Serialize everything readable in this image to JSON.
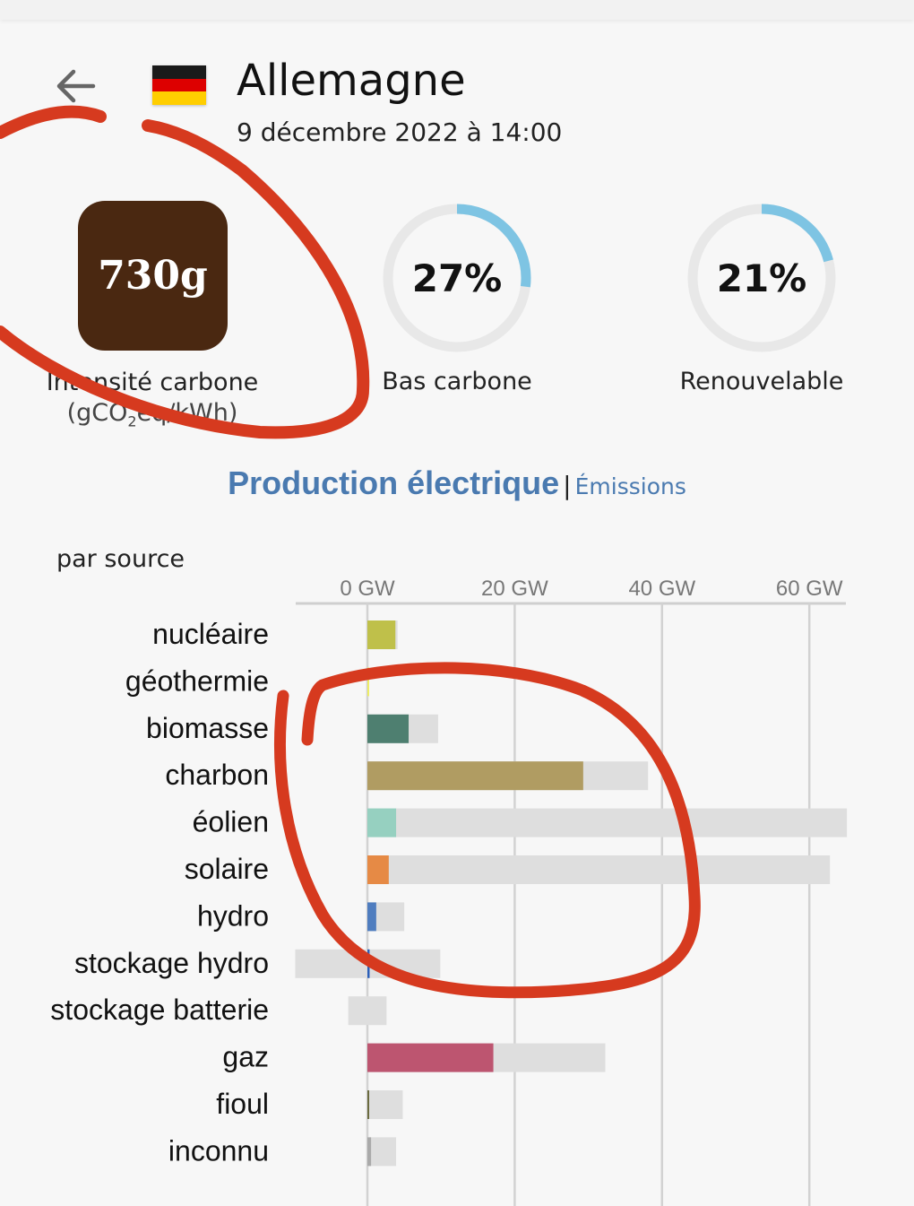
{
  "header": {
    "title": "Allemagne",
    "datetime": "9 décembre 2022 à 14:00",
    "flag_colors": [
      "#1a1a1a",
      "#dd0000",
      "#ffce00"
    ]
  },
  "summary": {
    "carbon_intensity": {
      "value": "730g",
      "label": "Intensité carbone",
      "color": "#4a2811"
    },
    "low_carbon": {
      "value": "27%",
      "percent": 27,
      "label": "Bas carbone"
    },
    "renewable": {
      "value": "21%",
      "percent": 21,
      "label": "Renouvelable"
    },
    "gauge_color": "#7ec4e3",
    "gauge_track_color": "#e8e8e8"
  },
  "section": {
    "title": "Production électrique",
    "separator": "|",
    "alt_tab": "Émissions"
  },
  "chart_label": "par source",
  "annotation_color": "#d63a1f",
  "chart_data": {
    "type": "bar",
    "unit": "GW",
    "xlim": [
      -10,
      65
    ],
    "ticks": [
      {
        "value": 0,
        "label": "0 GW"
      },
      {
        "value": 20,
        "label": "20 GW"
      },
      {
        "value": 40,
        "label": "40 GW"
      },
      {
        "value": 60,
        "label": "60 GW"
      }
    ],
    "grid": true,
    "categories": [
      "nucléaire",
      "géothermie",
      "biomasse",
      "charbon",
      "éolien",
      "solaire",
      "hydro",
      "stockage hydro",
      "stockage batterie",
      "gaz",
      "fioul",
      "inconnu"
    ],
    "series": [
      {
        "values": [
          3.8,
          0.1,
          5.6,
          29.3,
          3.9,
          2.9,
          1.2,
          0.3,
          0,
          17.1,
          0.1,
          0.5
        ],
        "colors": [
          "#bfc04a",
          "#eeee66",
          "#4e7f70",
          "#b09c62",
          "#96d0c0",
          "#e68a45",
          "#4f7dbf",
          "#2b5fb8",
          "#888888",
          "#bd5570",
          "#6b6b3f",
          "#aaaaaa"
        ]
      },
      {
        "capacity_min": [
          0,
          0,
          0,
          0,
          0,
          0,
          0,
          -9.8,
          -2.6,
          0,
          0,
          0
        ],
        "capacity_max": [
          4.1,
          0.1,
          9.6,
          38.1,
          65.1,
          62.8,
          5.0,
          9.9,
          2.6,
          32.3,
          4.8,
          3.9
        ],
        "color": "#dedede"
      }
    ]
  }
}
